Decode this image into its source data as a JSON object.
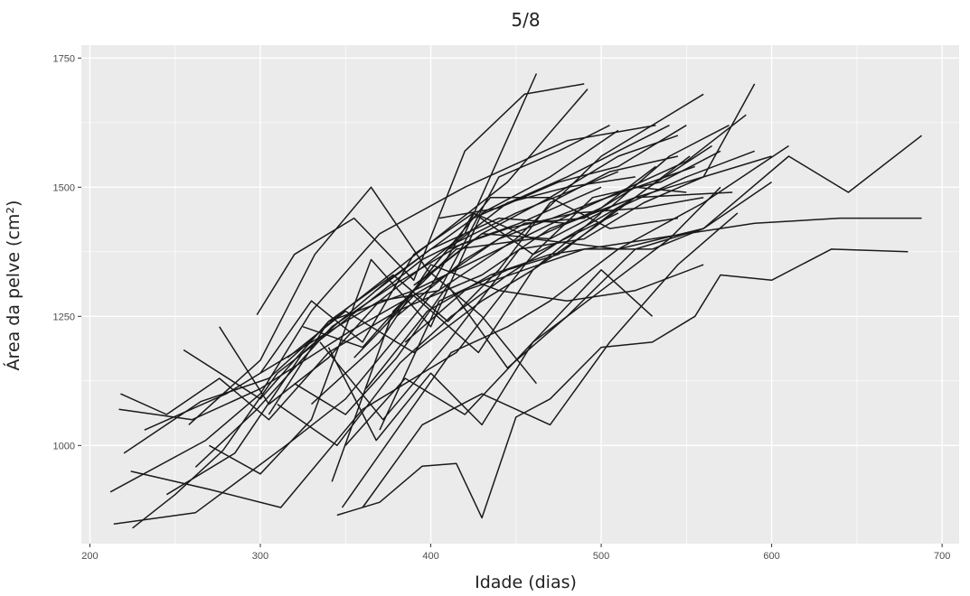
{
  "chart_data": {
    "type": "line",
    "title": "5/8",
    "xlabel": "Idade (dias)",
    "ylabel": "Área da pelve (cm²)",
    "xlim": [
      195,
      710
    ],
    "ylim": [
      810,
      1775
    ],
    "x_ticks": [
      200,
      300,
      400,
      500,
      600,
      700
    ],
    "y_ticks": [
      1000,
      1250,
      1500,
      1750
    ],
    "x_tick_labels": [
      "200",
      "300",
      "400",
      "500",
      "600",
      "700"
    ],
    "y_tick_labels": [
      "1000",
      "1250",
      "1500",
      "1750"
    ],
    "grid": true,
    "background": "#ebebeb",
    "grid_color": "#ffffff",
    "line_color": "#1a1a1a",
    "series": [
      {
        "x": [
          212,
          268,
          300,
          330,
          370,
          420,
          480,
          532
        ],
        "y": [
          910,
          1010,
          1100,
          1260,
          1410,
          1500,
          1590,
          1620
        ]
      },
      {
        "x": [
          214,
          262,
          315,
          350,
          400,
          450,
          500,
          560
        ],
        "y": [
          848,
          870,
          1000,
          1090,
          1290,
          1400,
          1560,
          1680
        ]
      },
      {
        "x": [
          225,
          250,
          278,
          310,
          345,
          395,
          450,
          510
        ],
        "y": [
          840,
          905,
          990,
          1140,
          1230,
          1360,
          1450,
          1530
        ]
      },
      {
        "x": [
          217,
          260,
          300,
          352,
          400,
          440,
          495,
          555
        ],
        "y": [
          1070,
          1050,
          1110,
          1220,
          1310,
          1400,
          1470,
          1540
        ]
      },
      {
        "x": [
          218,
          245,
          276,
          305,
          340,
          380,
          430,
          470,
          520,
          577
        ],
        "y": [
          1100,
          1060,
          1130,
          1050,
          1180,
          1260,
          1330,
          1420,
          1480,
          1490
        ]
      },
      {
        "x": [
          220,
          265,
          305,
          345,
          395,
          445,
          492
        ],
        "y": [
          985,
          1085,
          1130,
          1250,
          1380,
          1510,
          1690
        ]
      },
      {
        "x": [
          224,
          270,
          312,
          360,
          415,
          460,
          510
        ],
        "y": [
          950,
          915,
          880,
          1070,
          1180,
          1370,
          1450
        ]
      },
      {
        "x": [
          232,
          280,
          320,
          370,
          420,
          462
        ],
        "y": [
          1030,
          1100,
          1180,
          1280,
          1410,
          1720
        ]
      },
      {
        "x": [
          245,
          285,
          325,
          375,
          425,
          480,
          540
        ],
        "y": [
          905,
          985,
          1180,
          1320,
          1440,
          1520,
          1620
        ]
      },
      {
        "x": [
          255,
          300,
          340,
          390,
          440,
          490,
          550,
          585
        ],
        "y": [
          1185,
          1090,
          1240,
          1300,
          1380,
          1460,
          1550,
          1640
        ]
      },
      {
        "x": [
          258,
          300,
          332,
          365,
          398,
          430,
          462
        ],
        "y": [
          1040,
          1165,
          1370,
          1500,
          1340,
          1250,
          1120
        ]
      },
      {
        "x": [
          262,
          298,
          342,
          378,
          418,
          452,
          500
        ],
        "y": [
          958,
          1070,
          1230,
          1310,
          1390,
          1430,
          1500
        ]
      },
      {
        "x": [
          270,
          300,
          330,
          365,
          400,
          430,
          470,
          510
        ],
        "y": [
          1000,
          945,
          1050,
          1360,
          1230,
          1450,
          1520,
          1610
        ]
      },
      {
        "x": [
          276,
          305,
          340,
          370,
          405,
          440,
          475,
          505
        ],
        "y": [
          1230,
          1080,
          1170,
          1280,
          1300,
          1520,
          1570,
          1620
        ]
      },
      {
        "x": [
          298,
          320,
          355,
          390,
          420,
          455,
          490
        ],
        "y": [
          1253,
          1370,
          1440,
          1320,
          1570,
          1680,
          1700
        ]
      },
      {
        "x": [
          300,
          330,
          360,
          390,
          425,
          460,
          500,
          532
        ],
        "y": [
          1140,
          1280,
          1200,
          1370,
          1450,
          1400,
          1460,
          1540
        ]
      },
      {
        "x": [
          305,
          340,
          378,
          410,
          440,
          470,
          505,
          545
        ],
        "y": [
          1060,
          1240,
          1330,
          1240,
          1340,
          1470,
          1530,
          1560
        ]
      },
      {
        "x": [
          310,
          345,
          382,
          412,
          445,
          478,
          520,
          552
        ],
        "y": [
          1080,
          1000,
          1160,
          1250,
          1330,
          1400,
          1480,
          1560
        ]
      },
      {
        "x": [
          316,
          350,
          390,
          430,
          460,
          500
        ],
        "y": [
          1170,
          1260,
          1180,
          1280,
          1340,
          1450
        ]
      },
      {
        "x": [
          320,
          350,
          380,
          410,
          445,
          480,
          520,
          560,
          600
        ],
        "y": [
          1120,
          1060,
          1170,
          1310,
          1150,
          1250,
          1380,
          1420,
          1510
        ]
      },
      {
        "x": [
          325,
          360,
          395,
          430,
          470,
          510,
          545
        ],
        "y": [
          1230,
          1190,
          1320,
          1410,
          1480,
          1560,
          1600
        ]
      },
      {
        "x": [
          330,
          370,
          400,
          440,
          480,
          520,
          560
        ],
        "y": [
          1080,
          1200,
          1350,
          1300,
          1280,
          1300,
          1350
        ]
      },
      {
        "x": [
          335,
          372,
          410,
          452,
          490,
          525,
          560,
          590
        ],
        "y": [
          1200,
          1050,
          1200,
          1380,
          1400,
          1470,
          1520,
          1700
        ]
      },
      {
        "x": [
          340,
          368,
          400,
          430,
          460,
          500,
          530
        ],
        "y": [
          1190,
          1010,
          1140,
          1040,
          1200,
          1340,
          1250
        ]
      },
      {
        "x": [
          342,
          378,
          415,
          460,
          510,
          560,
          610,
          645,
          688
        ],
        "y": [
          930,
          1260,
          1380,
          1400,
          1380,
          1420,
          1560,
          1490,
          1600
        ]
      },
      {
        "x": [
          348,
          380,
          412,
          445,
          470,
          510,
          560,
          610
        ],
        "y": [
          880,
          1030,
          1180,
          1230,
          1280,
          1380,
          1470,
          1580
        ]
      },
      {
        "x": [
          350,
          385,
          420,
          460,
          500,
          540,
          570
        ],
        "y": [
          1000,
          1130,
          1060,
          1200,
          1300,
          1400,
          1500
        ]
      },
      {
        "x": [
          355,
          390,
          428,
          460,
          495,
          528,
          565
        ],
        "y": [
          1170,
          1290,
          1180,
          1340,
          1420,
          1500,
          1580
        ]
      },
      {
        "x": [
          360,
          395,
          430,
          470,
          505,
          545,
          580
        ],
        "y": [
          880,
          1040,
          1100,
          1040,
          1200,
          1350,
          1450
        ]
      },
      {
        "x": [
          362,
          398,
          435,
          470,
          510,
          550,
          590,
          640,
          688
        ],
        "y": [
          1110,
          1260,
          1330,
          1370,
          1390,
          1410,
          1430,
          1440,
          1440
        ]
      },
      {
        "x": [
          368,
          400,
          440,
          480,
          520,
          560,
          600
        ],
        "y": [
          1300,
          1380,
          1440,
          1430,
          1480,
          1520,
          1560
        ]
      },
      {
        "x": [
          370,
          405,
          445,
          475,
          510,
          550,
          590
        ],
        "y": [
          1030,
          1280,
          1340,
          1370,
          1460,
          1520,
          1570
        ]
      },
      {
        "x": [
          375,
          410,
          445,
          485,
          525,
          560
        ],
        "y": [
          1240,
          1380,
          1420,
          1450,
          1460,
          1480
        ]
      },
      {
        "x": [
          380,
          420,
          455,
          490,
          520,
          550
        ],
        "y": [
          1250,
          1360,
          1430,
          1440,
          1500,
          1490
        ]
      },
      {
        "x": [
          345,
          370,
          395,
          415,
          430,
          450,
          470,
          500,
          530,
          555,
          570,
          600,
          635,
          680
        ],
        "y": [
          865,
          890,
          960,
          965,
          860,
          1055,
          1090,
          1190,
          1200,
          1250,
          1330,
          1320,
          1380,
          1375
        ]
      },
      {
        "x": [
          385,
          420,
          455,
          490,
          530,
          560
        ],
        "y": [
          1200,
          1300,
          1340,
          1380,
          1380,
          1420
        ]
      },
      {
        "x": [
          390,
          430,
          470,
          505,
          540,
          575
        ],
        "y": [
          1310,
          1410,
          1400,
          1460,
          1560,
          1620
        ]
      },
      {
        "x": [
          395,
          425,
          460,
          495,
          535,
          570
        ],
        "y": [
          1280,
          1450,
          1370,
          1480,
          1510,
          1570
        ]
      },
      {
        "x": [
          400,
          435,
          470,
          505,
          545
        ],
        "y": [
          1340,
          1480,
          1480,
          1420,
          1440
        ]
      },
      {
        "x": [
          405,
          440,
          475,
          510,
          550
        ],
        "y": [
          1440,
          1460,
          1510,
          1540,
          1620
        ]
      },
      {
        "x": [
          410,
          445,
          480,
          520
        ],
        "y": [
          1380,
          1470,
          1500,
          1520
        ]
      }
    ]
  }
}
